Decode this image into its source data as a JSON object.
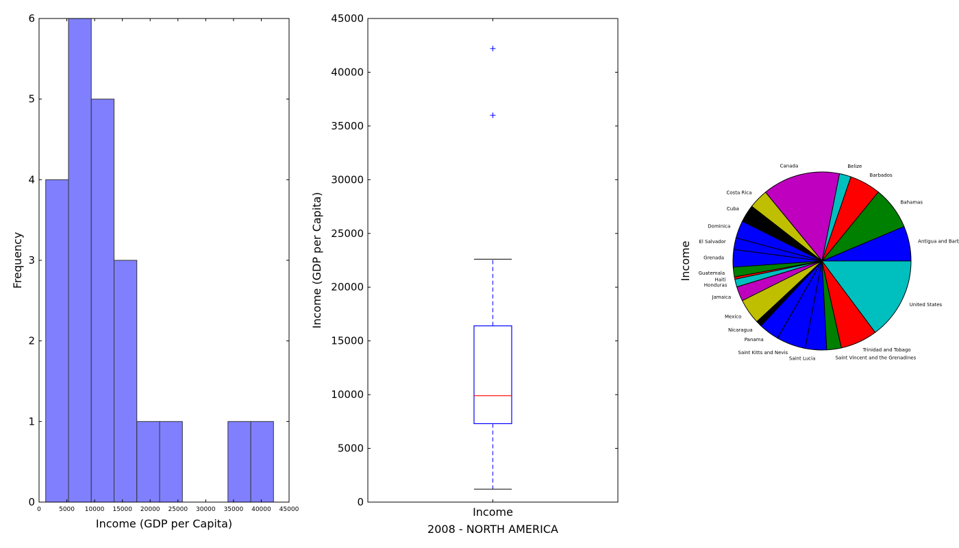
{
  "chart_data": [
    {
      "type": "bar",
      "subtype": "histogram",
      "xlabel": "Income (GDP per Capita)",
      "ylabel": "Frequency",
      "xlim": [
        0,
        45000
      ],
      "ylim": [
        0,
        6
      ],
      "x_ticks": [
        "0",
        "5000",
        "10000",
        "15000",
        "20000",
        "25000",
        "30000",
        "35000",
        "40000",
        "45000"
      ],
      "y_ticks": [
        "0",
        "1",
        "2",
        "3",
        "4",
        "5",
        "6"
      ],
      "bins": [
        {
          "start": 1200,
          "end": 5300,
          "count": 4
        },
        {
          "start": 5300,
          "end": 9400,
          "count": 6
        },
        {
          "start": 9400,
          "end": 13500,
          "count": 5
        },
        {
          "start": 13500,
          "end": 17600,
          "count": 3
        },
        {
          "start": 17600,
          "end": 21700,
          "count": 1
        },
        {
          "start": 21700,
          "end": 25800,
          "count": 1
        },
        {
          "start": 25800,
          "end": 29900,
          "count": 0
        },
        {
          "start": 29900,
          "end": 34000,
          "count": 0
        },
        {
          "start": 34000,
          "end": 38100,
          "count": 1
        },
        {
          "start": 38100,
          "end": 42200,
          "count": 1
        }
      ],
      "color": "#8080ff",
      "grid": false
    },
    {
      "type": "box",
      "category": "Income",
      "xlabel": "2008 - NORTH AMERICA",
      "ylabel": "Income (GDP per Capita)",
      "ylim": [
        0,
        45000
      ],
      "y_ticks": [
        "0",
        "5000",
        "10000",
        "15000",
        "20000",
        "25000",
        "30000",
        "35000",
        "40000",
        "45000"
      ],
      "whisker_low": 1200,
      "q1": 7300,
      "median": 9900,
      "q3": 16400,
      "whisker_high": 22600,
      "outliers": [
        36000,
        42200
      ],
      "box_color": "#0000ff",
      "median_color": "#ff0000"
    },
    {
      "type": "pie",
      "ylabel": "Income",
      "slices": [
        {
          "label": "Antigua and Barbuda",
          "value": 18000,
          "color": "#0000ff"
        },
        {
          "label": "Bahamas",
          "value": 22000,
          "color": "#008000"
        },
        {
          "label": "Barbados",
          "value": 16000,
          "color": "#ff0000"
        },
        {
          "label": "Belize",
          "value": 6000,
          "color": "#00bfbf"
        },
        {
          "label": "Canada",
          "value": 40000,
          "color": "#bf00bf"
        },
        {
          "label": "Costa Rica",
          "value": 10000,
          "color": "#bfbf00"
        },
        {
          "label": "Cuba",
          "value": 9000,
          "color": "#000000"
        },
        {
          "label": "Dominica",
          "value": 9000,
          "color": "#0000ff"
        },
        {
          "label": "El Salvador",
          "value": 6000,
          "color": "#0000ff"
        },
        {
          "label": "Grenada",
          "value": 9000,
          "color": "#0000ff"
        },
        {
          "label": "Guatemala",
          "value": 5000,
          "color": "#008000"
        },
        {
          "label": "Haiti",
          "value": 1200,
          "color": "#ff0000"
        },
        {
          "label": "Honduras",
          "value": 4000,
          "color": "#00bfbf"
        },
        {
          "label": "Jamaica",
          "value": 7500,
          "color": "#bf00bf"
        },
        {
          "label": "Mexico",
          "value": 13000,
          "color": "#bfbf00"
        },
        {
          "label": "Nicaragua",
          "value": 3000,
          "color": "#000000"
        },
        {
          "label": "Panama",
          "value": 10500,
          "color": "#0000ff"
        },
        {
          "label": "Saint Kitts and Nevis",
          "value": 15000,
          "color": "#0000ff"
        },
        {
          "label": "Saint Lucia",
          "value": 11000,
          "color": "#0000ff"
        },
        {
          "label": "Saint Vincent and the Grenadines",
          "value": 7500,
          "color": "#008000"
        },
        {
          "label": "Trinidad and Tobago",
          "value": 19000,
          "color": "#ff0000"
        },
        {
          "label": "United States",
          "value": 42000,
          "color": "#00bfbf"
        }
      ]
    }
  ]
}
